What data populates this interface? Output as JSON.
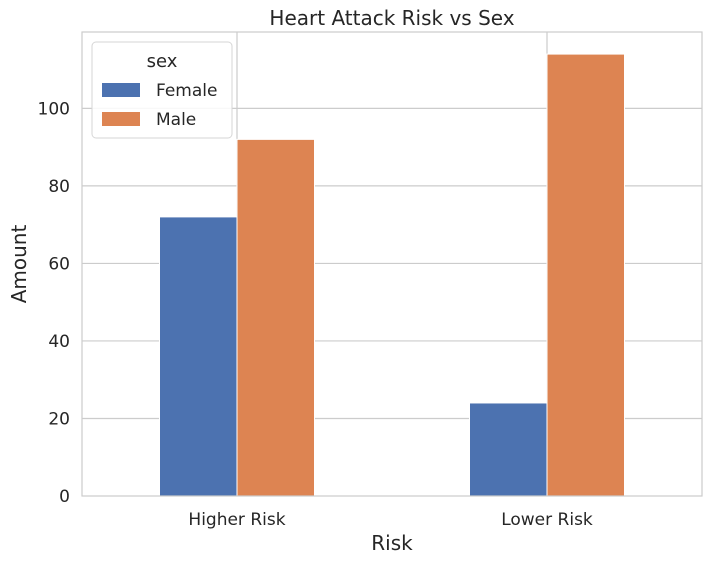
{
  "chart_data": {
    "type": "bar",
    "title": "Heart Attack Risk vs Sex",
    "xlabel": "Risk",
    "ylabel": "Amount",
    "categories": [
      "Higher Risk",
      "Lower Risk"
    ],
    "series": [
      {
        "name": "Female",
        "values": [
          72,
          24
        ],
        "color": "#4c72b0"
      },
      {
        "name": "Male",
        "values": [
          92,
          114
        ],
        "color": "#dd8452"
      }
    ],
    "ylim": [
      0,
      119.7
    ],
    "yticks": [
      0,
      20,
      40,
      60,
      80,
      100
    ],
    "grid": true,
    "legend": {
      "title": "sex",
      "position": "top-left"
    }
  }
}
